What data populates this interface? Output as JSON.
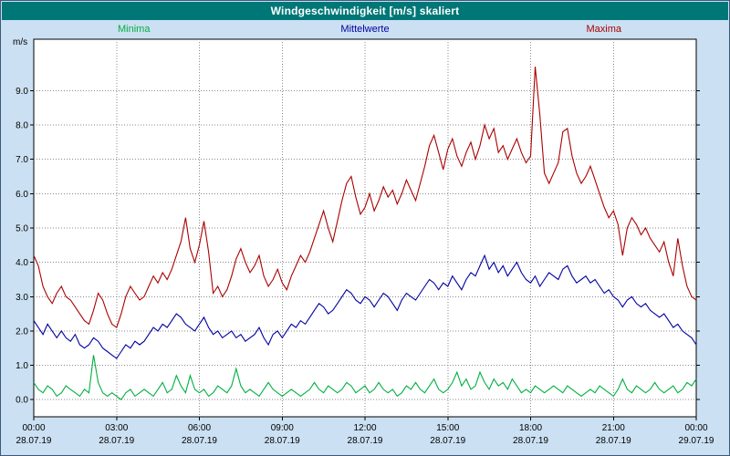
{
  "window": {
    "title": "Windgeschwindigkeit [m/s] skaliert"
  },
  "colors": {
    "background": "#cbe0f2",
    "titlebar": "#007777",
    "plot_background": "#ffffff",
    "plot_border": "#000000",
    "grid": "#8a8a8a",
    "axis_text": "#000000",
    "minima": "#00b040",
    "mittelwerte": "#0000a0",
    "maxima": "#aa0000"
  },
  "chart_data": {
    "type": "line",
    "title": "Windgeschwindigkeit [m/s] skaliert",
    "ylabel": "m/s",
    "ylim": [
      -0.5,
      10.5
    ],
    "yticks": [
      0,
      1,
      2,
      3,
      4,
      5,
      6,
      7,
      8,
      9
    ],
    "ytick_labels": [
      "0.0",
      "1.0",
      "2.0",
      "3.0",
      "4.0",
      "5.0",
      "6.0",
      "7.0",
      "8.0",
      "9.0"
    ],
    "x_hours_span": 24,
    "xticks_hours": [
      0,
      3,
      6,
      9,
      12,
      15,
      18,
      21,
      24
    ],
    "xtick_time_labels": [
      "00:00",
      "03:00",
      "06:00",
      "09:00",
      "12:00",
      "15:00",
      "18:00",
      "21:00",
      "00:00"
    ],
    "xtick_date_labels": [
      "28.07.19",
      "28.07.19",
      "28.07.19",
      "28.07.19",
      "28.07.19",
      "28.07.19",
      "28.07.19",
      "28.07.19",
      "29.07.19"
    ],
    "grid": "dotted",
    "legend_position": "top",
    "sample_interval_minutes": 10,
    "series": [
      {
        "name": "Minima",
        "color": "#00b040",
        "values": [
          0.5,
          0.3,
          0.2,
          0.4,
          0.3,
          0.1,
          0.2,
          0.4,
          0.3,
          0.2,
          0.1,
          0.3,
          0.2,
          1.3,
          0.5,
          0.2,
          0.1,
          0.2,
          0.1,
          0.0,
          0.2,
          0.3,
          0.1,
          0.2,
          0.3,
          0.2,
          0.1,
          0.3,
          0.5,
          0.2,
          0.3,
          0.7,
          0.4,
          0.2,
          0.7,
          0.3,
          0.2,
          0.3,
          0.1,
          0.2,
          0.4,
          0.3,
          0.2,
          0.4,
          0.9,
          0.4,
          0.2,
          0.3,
          0.2,
          0.1,
          0.3,
          0.5,
          0.3,
          0.2,
          0.1,
          0.2,
          0.3,
          0.2,
          0.1,
          0.2,
          0.3,
          0.5,
          0.3,
          0.2,
          0.4,
          0.3,
          0.2,
          0.3,
          0.5,
          0.4,
          0.2,
          0.3,
          0.4,
          0.2,
          0.3,
          0.5,
          0.3,
          0.2,
          0.3,
          0.1,
          0.2,
          0.4,
          0.3,
          0.5,
          0.3,
          0.2,
          0.4,
          0.6,
          0.3,
          0.2,
          0.3,
          0.5,
          0.8,
          0.4,
          0.6,
          0.3,
          0.4,
          0.8,
          0.5,
          0.3,
          0.6,
          0.4,
          0.5,
          0.3,
          0.6,
          0.4,
          0.2,
          0.3,
          0.2,
          0.4,
          0.3,
          0.2,
          0.3,
          0.4,
          0.3,
          0.2,
          0.4,
          0.3,
          0.2,
          0.1,
          0.2,
          0.3,
          0.2,
          0.4,
          0.3,
          0.2,
          0.1,
          0.3,
          0.6,
          0.3,
          0.2,
          0.4,
          0.3,
          0.2,
          0.3,
          0.5,
          0.3,
          0.2,
          0.3,
          0.4,
          0.2,
          0.3,
          0.5,
          0.4,
          0.6
        ]
      },
      {
        "name": "Mittelwerte",
        "color": "#0000a0",
        "values": [
          2.3,
          2.1,
          1.9,
          2.2,
          2.0,
          1.8,
          2.0,
          1.8,
          1.7,
          1.9,
          1.6,
          1.5,
          1.6,
          1.8,
          1.7,
          1.5,
          1.4,
          1.3,
          1.2,
          1.4,
          1.6,
          1.5,
          1.7,
          1.6,
          1.7,
          1.9,
          2.1,
          2.0,
          2.2,
          2.1,
          2.3,
          2.5,
          2.4,
          2.2,
          2.1,
          2.0,
          2.2,
          2.4,
          2.1,
          1.9,
          2.0,
          1.8,
          1.9,
          2.0,
          1.8,
          1.9,
          1.7,
          1.8,
          1.9,
          2.1,
          1.8,
          1.6,
          1.9,
          2.0,
          1.8,
          2.0,
          2.2,
          2.1,
          2.3,
          2.2,
          2.4,
          2.6,
          2.8,
          2.7,
          2.5,
          2.6,
          2.8,
          3.0,
          3.2,
          3.1,
          2.9,
          2.8,
          3.0,
          2.9,
          2.7,
          2.9,
          3.1,
          3.0,
          2.8,
          2.6,
          2.9,
          3.1,
          3.0,
          2.9,
          3.1,
          3.3,
          3.5,
          3.4,
          3.2,
          3.4,
          3.3,
          3.6,
          3.4,
          3.2,
          3.5,
          3.7,
          3.6,
          3.9,
          4.2,
          3.8,
          4.0,
          3.7,
          3.9,
          3.6,
          3.8,
          4.0,
          3.7,
          3.5,
          3.4,
          3.6,
          3.3,
          3.5,
          3.7,
          3.6,
          3.5,
          3.8,
          3.9,
          3.6,
          3.4,
          3.5,
          3.6,
          3.4,
          3.5,
          3.3,
          3.1,
          3.2,
          3.0,
          2.9,
          2.7,
          2.9,
          3.0,
          2.8,
          2.7,
          2.8,
          2.6,
          2.5,
          2.4,
          2.5,
          2.3,
          2.1,
          2.2,
          2.0,
          1.9,
          1.8,
          1.6
        ]
      },
      {
        "name": "Maxima",
        "color": "#aa0000",
        "values": [
          4.2,
          3.9,
          3.3,
          3.0,
          2.8,
          3.1,
          3.3,
          3.0,
          2.9,
          2.7,
          2.5,
          2.3,
          2.2,
          2.6,
          3.1,
          2.9,
          2.5,
          2.2,
          2.1,
          2.5,
          3.0,
          3.3,
          3.1,
          2.9,
          3.0,
          3.3,
          3.6,
          3.4,
          3.7,
          3.5,
          3.8,
          4.2,
          4.6,
          5.3,
          4.4,
          4.0,
          4.5,
          5.2,
          4.3,
          3.1,
          3.3,
          3.0,
          3.2,
          3.6,
          4.1,
          4.4,
          4.0,
          3.7,
          3.9,
          4.2,
          3.6,
          3.3,
          3.5,
          3.8,
          3.4,
          3.2,
          3.6,
          3.9,
          4.2,
          4.0,
          4.3,
          4.7,
          5.1,
          5.5,
          5.0,
          4.6,
          5.2,
          5.8,
          6.3,
          6.5,
          5.9,
          5.4,
          5.6,
          6.0,
          5.5,
          5.8,
          6.2,
          5.9,
          6.1,
          5.7,
          6.0,
          6.4,
          6.1,
          5.8,
          6.3,
          6.8,
          7.4,
          7.7,
          7.2,
          6.7,
          7.3,
          7.6,
          7.1,
          6.8,
          7.2,
          7.5,
          7.0,
          7.4,
          8.0,
          7.6,
          7.9,
          7.2,
          7.4,
          7.0,
          7.3,
          7.6,
          7.2,
          6.9,
          7.1,
          9.7,
          8.3,
          6.6,
          6.3,
          6.6,
          6.9,
          7.8,
          7.9,
          7.1,
          6.6,
          6.3,
          6.5,
          6.8,
          6.4,
          6.0,
          5.6,
          5.3,
          5.5,
          5.1,
          4.2,
          5.0,
          5.3,
          5.1,
          4.8,
          5.0,
          4.7,
          4.5,
          4.3,
          4.6,
          4.0,
          3.6,
          4.7,
          3.9,
          3.3,
          3.0,
          2.9
        ]
      }
    ]
  }
}
